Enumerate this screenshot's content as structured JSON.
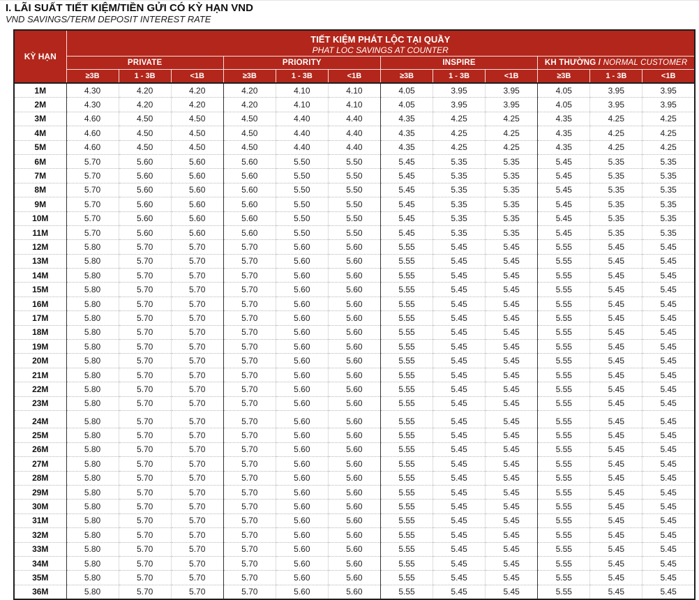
{
  "page": {
    "title": "I. LÃI SUẤT TIẾT KIỆM/TIỀN GỬI CÓ KỲ HẠN VND",
    "subtitle": "VND SAVINGS/TERM DEPOSIT INTEREST RATE"
  },
  "colors": {
    "header_red": "#B2261B",
    "border_dark": "#1e1e1e",
    "header_text": "#ffffff",
    "body_text": "#1f1f1f"
  },
  "table": {
    "counter_title_vi": "TIẾT KIỆM PHÁT LỘC TẠI QUẦY",
    "counter_title_en": "PHAT LOC SAVINGS AT COUNTER",
    "term_header": "KỲ HẠN",
    "groups": [
      {
        "bold": "PRIVATE",
        "italic": ""
      },
      {
        "bold": "PRIORITY",
        "italic": ""
      },
      {
        "bold": "INSPIRE",
        "italic": ""
      },
      {
        "bold": "KH THƯỜNG / ",
        "italic": "NORMAL CUSTOMER"
      }
    ],
    "tier_headers": [
      "≥3B",
      "1 - 3B",
      "<1B"
    ],
    "rows": [
      {
        "term": "1M",
        "rates": [
          "4.30",
          "4.20",
          "4.20",
          "4.20",
          "4.10",
          "4.10",
          "4.05",
          "3.95",
          "3.95",
          "4.05",
          "3.95",
          "3.95"
        ]
      },
      {
        "term": "2M",
        "rates": [
          "4.30",
          "4.20",
          "4.20",
          "4.20",
          "4.10",
          "4.10",
          "4.05",
          "3.95",
          "3.95",
          "4.05",
          "3.95",
          "3.95"
        ]
      },
      {
        "term": "3M",
        "rates": [
          "4.60",
          "4.50",
          "4.50",
          "4.50",
          "4.40",
          "4.40",
          "4.35",
          "4.25",
          "4.25",
          "4.35",
          "4.25",
          "4.25"
        ]
      },
      {
        "term": "4M",
        "rates": [
          "4.60",
          "4.50",
          "4.50",
          "4.50",
          "4.40",
          "4.40",
          "4.35",
          "4.25",
          "4.25",
          "4.35",
          "4.25",
          "4.25"
        ]
      },
      {
        "term": "5M",
        "rates": [
          "4.60",
          "4.50",
          "4.50",
          "4.50",
          "4.40",
          "4.40",
          "4.35",
          "4.25",
          "4.25",
          "4.35",
          "4.25",
          "4.25"
        ]
      },
      {
        "term": "6M",
        "rates": [
          "5.70",
          "5.60",
          "5.60",
          "5.60",
          "5.50",
          "5.50",
          "5.45",
          "5.35",
          "5.35",
          "5.45",
          "5.35",
          "5.35"
        ]
      },
      {
        "term": "7M",
        "rates": [
          "5.70",
          "5.60",
          "5.60",
          "5.60",
          "5.50",
          "5.50",
          "5.45",
          "5.35",
          "5.35",
          "5.45",
          "5.35",
          "5.35"
        ]
      },
      {
        "term": "8M",
        "rates": [
          "5.70",
          "5.60",
          "5.60",
          "5.60",
          "5.50",
          "5.50",
          "5.45",
          "5.35",
          "5.35",
          "5.45",
          "5.35",
          "5.35"
        ]
      },
      {
        "term": "9M",
        "rates": [
          "5.70",
          "5.60",
          "5.60",
          "5.60",
          "5.50",
          "5.50",
          "5.45",
          "5.35",
          "5.35",
          "5.45",
          "5.35",
          "5.35"
        ]
      },
      {
        "term": "10M",
        "rates": [
          "5.70",
          "5.60",
          "5.60",
          "5.60",
          "5.50",
          "5.50",
          "5.45",
          "5.35",
          "5.35",
          "5.45",
          "5.35",
          "5.35"
        ]
      },
      {
        "term": "11M",
        "rates": [
          "5.70",
          "5.60",
          "5.60",
          "5.60",
          "5.50",
          "5.50",
          "5.45",
          "5.35",
          "5.35",
          "5.45",
          "5.35",
          "5.35"
        ]
      },
      {
        "term": "12M",
        "rates": [
          "5.80",
          "5.70",
          "5.70",
          "5.70",
          "5.60",
          "5.60",
          "5.55",
          "5.45",
          "5.45",
          "5.55",
          "5.45",
          "5.45"
        ]
      },
      {
        "term": "13M",
        "rates": [
          "5.80",
          "5.70",
          "5.70",
          "5.70",
          "5.60",
          "5.60",
          "5.55",
          "5.45",
          "5.45",
          "5.55",
          "5.45",
          "5.45"
        ]
      },
      {
        "term": "14M",
        "rates": [
          "5.80",
          "5.70",
          "5.70",
          "5.70",
          "5.60",
          "5.60",
          "5.55",
          "5.45",
          "5.45",
          "5.55",
          "5.45",
          "5.45"
        ]
      },
      {
        "term": "15M",
        "rates": [
          "5.80",
          "5.70",
          "5.70",
          "5.70",
          "5.60",
          "5.60",
          "5.55",
          "5.45",
          "5.45",
          "5.55",
          "5.45",
          "5.45"
        ]
      },
      {
        "term": "16M",
        "rates": [
          "5.80",
          "5.70",
          "5.70",
          "5.70",
          "5.60",
          "5.60",
          "5.55",
          "5.45",
          "5.45",
          "5.55",
          "5.45",
          "5.45"
        ]
      },
      {
        "term": "17M",
        "rates": [
          "5.80",
          "5.70",
          "5.70",
          "5.70",
          "5.60",
          "5.60",
          "5.55",
          "5.45",
          "5.45",
          "5.55",
          "5.45",
          "5.45"
        ]
      },
      {
        "term": "18M",
        "rates": [
          "5.80",
          "5.70",
          "5.70",
          "5.70",
          "5.60",
          "5.60",
          "5.55",
          "5.45",
          "5.45",
          "5.55",
          "5.45",
          "5.45"
        ]
      },
      {
        "term": "19M",
        "rates": [
          "5.80",
          "5.70",
          "5.70",
          "5.70",
          "5.60",
          "5.60",
          "5.55",
          "5.45",
          "5.45",
          "5.55",
          "5.45",
          "5.45"
        ]
      },
      {
        "term": "20M",
        "rates": [
          "5.80",
          "5.70",
          "5.70",
          "5.70",
          "5.60",
          "5.60",
          "5.55",
          "5.45",
          "5.45",
          "5.55",
          "5.45",
          "5.45"
        ]
      },
      {
        "term": "21M",
        "rates": [
          "5.80",
          "5.70",
          "5.70",
          "5.70",
          "5.60",
          "5.60",
          "5.55",
          "5.45",
          "5.45",
          "5.55",
          "5.45",
          "5.45"
        ]
      },
      {
        "term": "22M",
        "rates": [
          "5.80",
          "5.70",
          "5.70",
          "5.70",
          "5.60",
          "5.60",
          "5.55",
          "5.45",
          "5.45",
          "5.55",
          "5.45",
          "5.45"
        ]
      },
      {
        "term": "23M",
        "rates": [
          "5.80",
          "5.70",
          "5.70",
          "5.70",
          "5.60",
          "5.60",
          "5.55",
          "5.45",
          "5.45",
          "5.55",
          "5.45",
          "5.45"
        ]
      },
      {
        "term": "24M",
        "page_break_before": true,
        "rates": [
          "5.80",
          "5.70",
          "5.70",
          "5.70",
          "5.60",
          "5.60",
          "5.55",
          "5.45",
          "5.45",
          "5.55",
          "5.45",
          "5.45"
        ]
      },
      {
        "term": "25M",
        "rates": [
          "5.80",
          "5.70",
          "5.70",
          "5.70",
          "5.60",
          "5.60",
          "5.55",
          "5.45",
          "5.45",
          "5.55",
          "5.45",
          "5.45"
        ]
      },
      {
        "term": "26M",
        "rates": [
          "5.80",
          "5.70",
          "5.70",
          "5.70",
          "5.60",
          "5.60",
          "5.55",
          "5.45",
          "5.45",
          "5.55",
          "5.45",
          "5.45"
        ]
      },
      {
        "term": "27M",
        "rates": [
          "5.80",
          "5.70",
          "5.70",
          "5.70",
          "5.60",
          "5.60",
          "5.55",
          "5.45",
          "5.45",
          "5.55",
          "5.45",
          "5.45"
        ]
      },
      {
        "term": "28M",
        "rates": [
          "5.80",
          "5.70",
          "5.70",
          "5.70",
          "5.60",
          "5.60",
          "5.55",
          "5.45",
          "5.45",
          "5.55",
          "5.45",
          "5.45"
        ]
      },
      {
        "term": "29M",
        "rates": [
          "5.80",
          "5.70",
          "5.70",
          "5.70",
          "5.60",
          "5.60",
          "5.55",
          "5.45",
          "5.45",
          "5.55",
          "5.45",
          "5.45"
        ]
      },
      {
        "term": "30M",
        "rates": [
          "5.80",
          "5.70",
          "5.70",
          "5.70",
          "5.60",
          "5.60",
          "5.55",
          "5.45",
          "5.45",
          "5.55",
          "5.45",
          "5.45"
        ]
      },
      {
        "term": "31M",
        "rates": [
          "5.80",
          "5.70",
          "5.70",
          "5.70",
          "5.60",
          "5.60",
          "5.55",
          "5.45",
          "5.45",
          "5.55",
          "5.45",
          "5.45"
        ]
      },
      {
        "term": "32M",
        "rates": [
          "5.80",
          "5.70",
          "5.70",
          "5.70",
          "5.60",
          "5.60",
          "5.55",
          "5.45",
          "5.45",
          "5.55",
          "5.45",
          "5.45"
        ]
      },
      {
        "term": "33M",
        "rates": [
          "5.80",
          "5.70",
          "5.70",
          "5.70",
          "5.60",
          "5.60",
          "5.55",
          "5.45",
          "5.45",
          "5.55",
          "5.45",
          "5.45"
        ]
      },
      {
        "term": "34M",
        "rates": [
          "5.80",
          "5.70",
          "5.70",
          "5.70",
          "5.60",
          "5.60",
          "5.55",
          "5.45",
          "5.45",
          "5.55",
          "5.45",
          "5.45"
        ]
      },
      {
        "term": "35M",
        "rates": [
          "5.80",
          "5.70",
          "5.70",
          "5.70",
          "5.60",
          "5.60",
          "5.55",
          "5.45",
          "5.45",
          "5.55",
          "5.45",
          "5.45"
        ]
      },
      {
        "term": "36M",
        "rates": [
          "5.80",
          "5.70",
          "5.70",
          "5.70",
          "5.60",
          "5.60",
          "5.55",
          "5.45",
          "5.45",
          "5.55",
          "5.45",
          "5.45"
        ]
      }
    ]
  }
}
